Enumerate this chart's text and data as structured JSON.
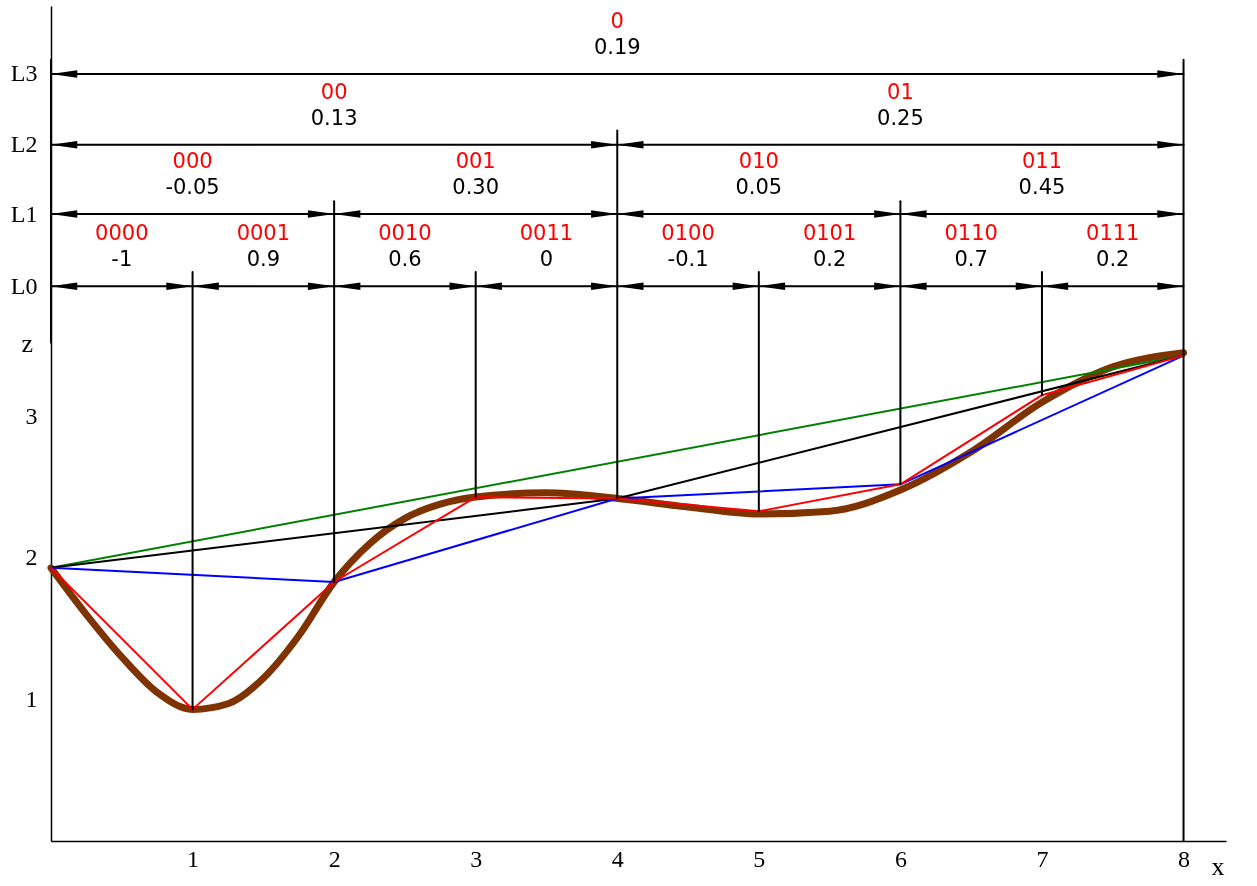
{
  "chart_data": {
    "type": "line",
    "xlabel": "x",
    "ylabel": "z",
    "xlim": [
      0,
      8.3
    ],
    "xticks": [
      1,
      2,
      3,
      4,
      5,
      6,
      7,
      8
    ],
    "ylim": [
      0,
      5.9
    ],
    "yticks": [
      1,
      2,
      3,
      {
        "value": 3.92,
        "label": "L0"
      },
      {
        "value": 4.43,
        "label": "L1"
      },
      {
        "value": 4.92,
        "label": "L2"
      },
      {
        "value": 5.42,
        "label": "L3"
      }
    ],
    "grid": false,
    "line_style": "solid",
    "series": [
      {
        "color": "#7f3300",
        "x": [
          0,
          0.25,
          0.5,
          0.75,
          1,
          1.25,
          1.5,
          1.75,
          2,
          2.25,
          2.5,
          2.75,
          3,
          3.5,
          4,
          4.5,
          5,
          5.5,
          6,
          6.5,
          7,
          7.5,
          8
        ],
        "values": [
          1.93,
          1.6,
          1.3,
          1.05,
          0.93,
          0.97,
          1.15,
          1.45,
          1.83,
          2.1,
          2.28,
          2.38,
          2.43,
          2.46,
          2.42,
          2.36,
          2.31,
          2.33,
          2.48,
          2.75,
          3.1,
          3.35,
          3.45
        ]
      },
      {
        "color": "#008000",
        "x": [
          0,
          8
        ],
        "values": [
          1.93,
          3.43
        ]
      },
      {
        "color": "#000000",
        "x": [
          0,
          4,
          8
        ],
        "values": [
          1.93,
          2.42,
          3.43
        ]
      },
      {
        "color": "#0000ff",
        "x": [
          0,
          2,
          4,
          6,
          8
        ],
        "values": [
          1.93,
          1.83,
          2.42,
          2.52,
          3.43
        ]
      },
      {
        "color": "#ff0000",
        "x": [
          0,
          1,
          2,
          3,
          4,
          5,
          6,
          7,
          8
        ],
        "values": [
          1.93,
          0.93,
          1.83,
          2.43,
          2.42,
          2.33,
          2.52,
          3.15,
          3.43
        ]
      },
      {
        "color": "#000000",
        "x": [
          0,
          1,
          2,
          3,
          4,
          5,
          6,
          7,
          8
        ],
        "values": [
          3.92,
          3.92,
          3.92,
          3.92,
          3.92,
          3.92,
          3.92,
          3.92,
          3.92
        ]
      },
      {
        "color": "#000000",
        "x": [
          0,
          2,
          4,
          6,
          8
        ],
        "values": [
          4.43,
          4.43,
          4.43,
          4.43,
          4.43
        ]
      },
      {
        "color": "#000000",
        "x": [
          0,
          4,
          8
        ],
        "values": [
          4.92,
          4.92,
          4.92
        ]
      },
      {
        "color": "#000000",
        "x": [
          0,
          8
        ],
        "values": [
          5.42,
          5.42
        ]
      },
      {
        "color": "#000000",
        "x": [
          0,
          0
        ],
        "values": [
          3.52,
          5.52
        ]
      },
      {
        "color": "#000000",
        "x": [
          1,
          1
        ],
        "values": [
          0.93,
          4.02
        ]
      },
      {
        "color": "#000000",
        "x": [
          2,
          2
        ],
        "values": [
          1.83,
          4.52
        ]
      },
      {
        "color": "#000000",
        "x": [
          3,
          3
        ],
        "values": [
          2.43,
          4.02
        ]
      },
      {
        "color": "#000000",
        "x": [
          4,
          4
        ],
        "values": [
          2.42,
          5.02
        ]
      },
      {
        "color": "#000000",
        "x": [
          5,
          5
        ],
        "values": [
          2.33,
          4.02
        ]
      },
      {
        "color": "#000000",
        "x": [
          6,
          6
        ],
        "values": [
          2.52,
          4.52
        ]
      },
      {
        "color": "#000000",
        "x": [
          7,
          7
        ],
        "values": [
          3.15,
          4.02
        ]
      },
      {
        "color": "#000000",
        "x": [
          8,
          8
        ],
        "values": [
          0,
          5.52
        ]
      }
    ],
    "annotations": [
      "0000",
      "-1",
      "0001",
      "0.9",
      "0010",
      "0.6",
      "0011",
      "0",
      "0100",
      "-0.1",
      "0101",
      "0.2",
      "0110",
      "0.7",
      "0111",
      "0.2",
      "000",
      "-0.05",
      "001",
      "0.30",
      "010",
      "0.05",
      "011",
      "0.45",
      "00",
      "0.13",
      "01",
      "0.25",
      "0",
      "0.19"
    ]
  }
}
